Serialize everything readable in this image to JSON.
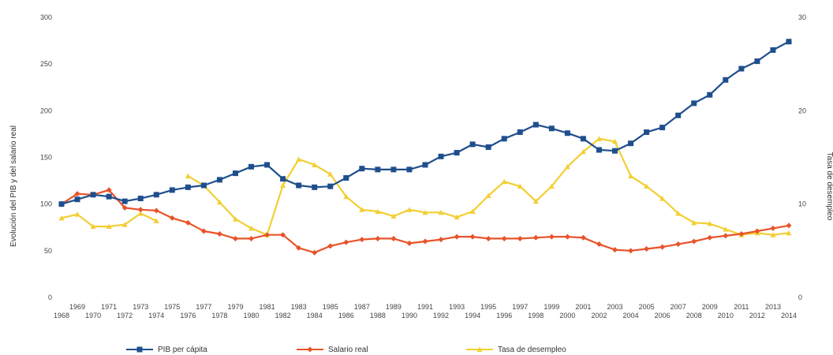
{
  "chart_data": {
    "type": "line",
    "ylabel": "Evolución del PIB y del salario real",
    "y2label": "Tasa de desempleo",
    "ylim": [
      0,
      300
    ],
    "y2lim": [
      0,
      30
    ],
    "yticks": [
      "0",
      "50",
      "100",
      "150",
      "200",
      "250",
      "300"
    ],
    "y2ticks": [
      "0",
      "10",
      "20",
      "30"
    ],
    "grid": false,
    "legend_position": "bottom",
    "x": [
      1968,
      1969,
      1970,
      1971,
      1972,
      1973,
      1974,
      1975,
      1976,
      1977,
      1978,
      1979,
      1980,
      1981,
      1982,
      1983,
      1984,
      1985,
      1986,
      1987,
      1988,
      1989,
      1990,
      1991,
      1992,
      1993,
      1994,
      1995,
      1996,
      1997,
      1998,
      1999,
      2000,
      2001,
      2002,
      2003,
      2004,
      2005,
      2006,
      2007,
      2008,
      2009,
      2010,
      2011,
      2012,
      2013,
      2014
    ],
    "xticks_upper": [
      "1969",
      "1971",
      "1973",
      "1975",
      "1977",
      "1979",
      "1981",
      "1983",
      "1985",
      "1987",
      "1989",
      "1991",
      "1993",
      "1995",
      "1997",
      "1999",
      "2001",
      "2003",
      "2005",
      "2007",
      "2009",
      "2011",
      "2013"
    ],
    "xticks_lower": [
      "1968",
      "1970",
      "1972",
      "1974",
      "1976",
      "1978",
      "1980",
      "1982",
      "1984",
      "1986",
      "1988",
      "1990",
      "1992",
      "1994",
      "1996",
      "1998",
      "2000",
      "2002",
      "2004",
      "2006",
      "2008",
      "2010",
      "2012",
      "2014"
    ],
    "series": [
      {
        "name": "PIB per cápita",
        "axis": "left",
        "color": "#1f4e8c",
        "marker": "square",
        "values": [
          100,
          105,
          110,
          108,
          103,
          106,
          110,
          115,
          118,
          120,
          126,
          133,
          140,
          142,
          127,
          120,
          118,
          119,
          128,
          138,
          137,
          137,
          137,
          142,
          151,
          155,
          164,
          161,
          170,
          177,
          185,
          181,
          176,
          170,
          158,
          157,
          165,
          177,
          182,
          195,
          208,
          217,
          233,
          245,
          253,
          265,
          274
        ]
      },
      {
        "name": "Salario real",
        "axis": "left",
        "color": "#e8532a",
        "marker": "diamond",
        "values": [
          100,
          111,
          110,
          115,
          96,
          94,
          93,
          85,
          80,
          71,
          68,
          63,
          63,
          67,
          67,
          53,
          48,
          55,
          59,
          62,
          63,
          63,
          58,
          60,
          62,
          65,
          65,
          63,
          63,
          63,
          64,
          65,
          65,
          64,
          57,
          51,
          50,
          52,
          54,
          57,
          60,
          64,
          66,
          68,
          71,
          74,
          77
        ]
      },
      {
        "name": "Tasa de desempleo",
        "axis": "right",
        "color": "#f2cf33",
        "marker": "triangle",
        "values": [
          8.5,
          8.9,
          7.6,
          7.6,
          7.8,
          9.0,
          8.2,
          null,
          13.0,
          12.0,
          10.2,
          8.4,
          7.4,
          6.7,
          12.0,
          14.8,
          14.2,
          13.2,
          10.8,
          9.4,
          9.2,
          8.7,
          9.4,
          9.1,
          9.1,
          8.6,
          9.2,
          10.9,
          12.4,
          11.9,
          10.3,
          11.9,
          14.0,
          15.6,
          17.0,
          16.7,
          13.0,
          11.9,
          10.6,
          9.0,
          8.0,
          7.9,
          7.3,
          6.7,
          6.9,
          6.7,
          6.9
        ]
      }
    ]
  }
}
